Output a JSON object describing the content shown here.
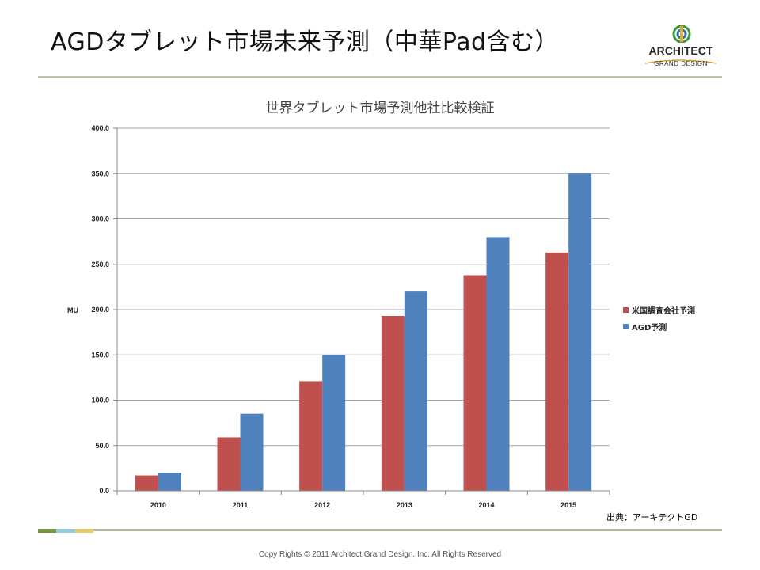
{
  "slide": {
    "title": "AGDタブレット市場未来予測（中華Pad含む）",
    "logo_name": "ARCHITECT",
    "logo_sub": "GRAND DESIGN",
    "source_note": "出典：アーキテクトGD",
    "footer": "Copy Rights © 2011 Architect Grand Design, Inc. All Rights Reserved"
  },
  "colors": {
    "series_red": "#c0504d",
    "series_blue": "#4f81bd",
    "grid": "#a6a6a6",
    "accent_green": "#77933c",
    "accent_blue": "#92cddc",
    "accent_yellow": "#e6cc6a"
  },
  "chart_data": {
    "type": "bar",
    "title": "世界タブレット市場予測他社比較検証",
    "ylabel": "MU",
    "xlabel": "",
    "categories": [
      "2010",
      "2011",
      "2012",
      "2013",
      "2014",
      "2015"
    ],
    "ylim": [
      0,
      400
    ],
    "yticks": [
      "0.0",
      "50.0",
      "100.0",
      "150.0",
      "200.0",
      "250.0",
      "300.0",
      "350.0",
      "400.0"
    ],
    "grid": true,
    "legend": "right",
    "series": [
      {
        "name": "米国調査会社予測",
        "color": "#c0504d",
        "values": [
          17,
          59,
          121,
          193,
          238,
          263
        ]
      },
      {
        "name": "AGD予測",
        "color": "#4f81bd",
        "values": [
          20,
          85,
          150,
          220,
          280,
          350
        ]
      }
    ]
  }
}
